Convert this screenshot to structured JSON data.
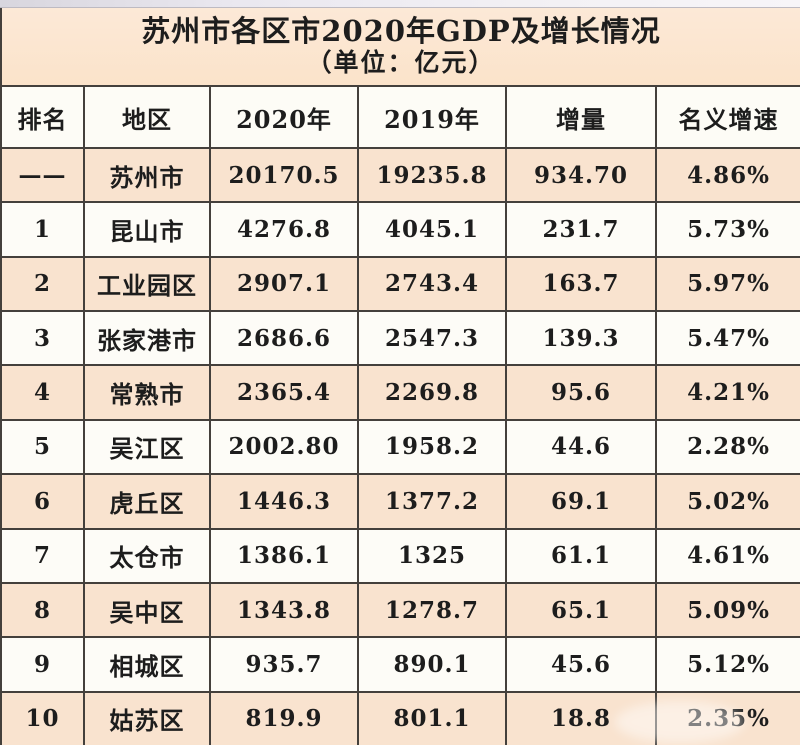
{
  "chart_data": {
    "type": "table",
    "title": "苏州市各区市2020年GDP及增长情况",
    "subtitle": "（单位：亿元）",
    "columns": [
      "排名",
      "地区",
      "2020年",
      "2019年",
      "增量",
      "名义增速"
    ],
    "rows": [
      [
        "——",
        "苏州市",
        "20170.5",
        "19235.8",
        "934.70",
        "4.86%"
      ],
      [
        "1",
        "昆山市",
        "4276.8",
        "4045.1",
        "231.7",
        "5.73%"
      ],
      [
        "2",
        "工业园区",
        "2907.1",
        "2743.4",
        "163.7",
        "5.97%"
      ],
      [
        "3",
        "张家港市",
        "2686.6",
        "2547.3",
        "139.3",
        "5.47%"
      ],
      [
        "4",
        "常熟市",
        "2365.4",
        "2269.8",
        "95.6",
        "4.21%"
      ],
      [
        "5",
        "吴江区",
        "2002.80",
        "1958.2",
        "44.6",
        "2.28%"
      ],
      [
        "6",
        "虎丘区",
        "1446.3",
        "1377.2",
        "69.1",
        "5.02%"
      ],
      [
        "7",
        "太仓市",
        "1386.1",
        "1325",
        "61.1",
        "4.61%"
      ],
      [
        "8",
        "吴中区",
        "1343.8",
        "1278.7",
        "65.1",
        "5.09%"
      ],
      [
        "9",
        "相城区",
        "935.7",
        "890.1",
        "45.6",
        "5.12%"
      ],
      [
        "10",
        "姑苏区",
        "819.9",
        "801.1",
        "18.8",
        "2.35%"
      ]
    ],
    "layout": {
      "grid": "full-borders",
      "row_striping": "odd-rows-peach",
      "header_position": "top"
    }
  },
  "colors": {
    "title_background": "#fbe3ca",
    "row_peach": "#f9e3cf",
    "row_white": "#fdfcf7",
    "border": "#44403c",
    "text": "#1d1d1d"
  }
}
